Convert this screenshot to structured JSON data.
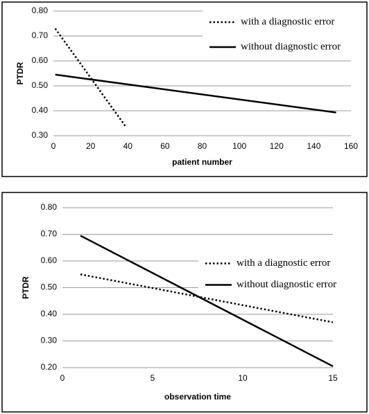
{
  "chart_data": [
    {
      "type": "line",
      "xlabel": "patient number",
      "ylabel": "PTDR",
      "xlim": [
        0,
        160
      ],
      "xticks": [
        0,
        20,
        40,
        60,
        80,
        100,
        120,
        140,
        160
      ],
      "ylim": [
        0.3,
        0.8
      ],
      "yticks": [
        {
          "value": 0.3,
          "label": "0.30"
        },
        {
          "value": 0.4,
          "label": "0.40"
        },
        {
          "value": 0.5,
          "label": "0.50"
        },
        {
          "value": 0.6,
          "label": "0.60"
        },
        {
          "value": 0.7,
          "label": "0.70"
        },
        {
          "value": 0.8,
          "label": "0.80"
        }
      ],
      "grid": true,
      "legend": "upper right",
      "series": [
        {
          "name": "with a diagnostic error",
          "color": "#000000",
          "style": "dotted",
          "x": [
            1,
            39
          ],
          "values": [
            0.73,
            0.335
          ]
        },
        {
          "name": "without diagnostic error",
          "color": "#000000",
          "style": "solid",
          "x": [
            1,
            152
          ],
          "values": [
            0.545,
            0.393
          ]
        }
      ]
    },
    {
      "type": "line",
      "xlabel": "observation time",
      "ylabel": "PTDR",
      "xlim": [
        0,
        15
      ],
      "xticks": [
        0,
        5,
        10,
        15
      ],
      "ylim": [
        0.2,
        0.8
      ],
      "yticks": [
        {
          "value": 0.2,
          "label": "0.20"
        },
        {
          "value": 0.3,
          "label": "0.30"
        },
        {
          "value": 0.4,
          "label": "0.40"
        },
        {
          "value": 0.5,
          "label": "0.50"
        },
        {
          "value": 0.6,
          "label": "0.60"
        },
        {
          "value": 0.7,
          "label": "0.70"
        },
        {
          "value": 0.8,
          "label": "0.80"
        }
      ],
      "grid": true,
      "legend": "right",
      "series": [
        {
          "name": "with a diagnostic error",
          "color": "#000000",
          "style": "dotted",
          "x": [
            1,
            15
          ],
          "values": [
            0.55,
            0.37
          ]
        },
        {
          "name": "without diagnostic error",
          "color": "#000000",
          "style": "solid",
          "x": [
            1,
            15
          ],
          "values": [
            0.695,
            0.205
          ]
        }
      ]
    }
  ]
}
